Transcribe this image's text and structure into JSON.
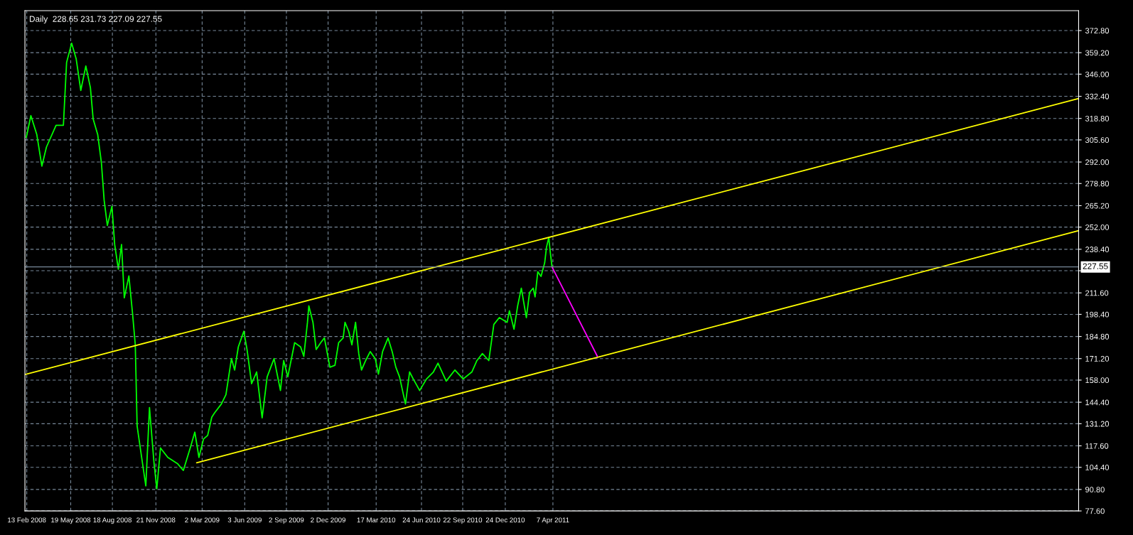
{
  "chart_data": {
    "type": "line",
    "title": "Daily  228.65 231.73 227.09 227.55",
    "xlim": [
      "2008-02-09",
      "2014-05-29"
    ],
    "xticks": [
      {
        "value": "2008-02-13",
        "label": "13 Feb 2008"
      },
      {
        "value": "2008-05-19",
        "label": "19 May 2008"
      },
      {
        "value": "2008-08-18",
        "label": "18 Aug 2008"
      },
      {
        "value": "2008-11-21",
        "label": "21 Nov 2008"
      },
      {
        "value": "2009-03-02",
        "label": "2 Mar 2009"
      },
      {
        "value": "2009-06-03",
        "label": "3 Jun 2009"
      },
      {
        "value": "2009-09-02",
        "label": "2 Sep 2009"
      },
      {
        "value": "2009-12-02",
        "label": "2 Dec 2009"
      },
      {
        "value": "2010-03-17",
        "label": "17 Mar 2010"
      },
      {
        "value": "2010-06-24",
        "label": "24 Jun 2010"
      },
      {
        "value": "2010-09-22",
        "label": "22 Sep 2010"
      },
      {
        "value": "2010-12-24",
        "label": "24 Dec 2010"
      },
      {
        "value": "2011-04-07",
        "label": "7 Apr 2011"
      }
    ],
    "ylim": [
      77.6,
      385
    ],
    "yticks": [
      {
        "value": 77.6,
        "label": "77.60"
      },
      {
        "value": 90.8,
        "label": "90.80"
      },
      {
        "value": 104.4,
        "label": "104.40"
      },
      {
        "value": 117.6,
        "label": "117.60"
      },
      {
        "value": 131.2,
        "label": "131.20"
      },
      {
        "value": 144.4,
        "label": "144.40"
      },
      {
        "value": 158.0,
        "label": "158.00"
      },
      {
        "value": 171.2,
        "label": "171.20"
      },
      {
        "value": 184.8,
        "label": "184.80"
      },
      {
        "value": 198.4,
        "label": "198.40"
      },
      {
        "value": 211.6,
        "label": "211.60"
      },
      {
        "value": 225.2,
        "label": null
      },
      {
        "value": 238.4,
        "label": "238.40"
      },
      {
        "value": 252.0,
        "label": "252.00"
      },
      {
        "value": 265.2,
        "label": "265.20"
      },
      {
        "value": 278.8,
        "label": "278.80"
      },
      {
        "value": 292.0,
        "label": "292.00"
      },
      {
        "value": 305.6,
        "label": "305.60"
      },
      {
        "value": 318.8,
        "label": "318.80"
      },
      {
        "value": 332.4,
        "label": "332.40"
      },
      {
        "value": 346.0,
        "label": "346.00"
      },
      {
        "value": 359.2,
        "label": "359.20"
      },
      {
        "value": 372.8,
        "label": "372.80"
      }
    ],
    "grid": true,
    "line_style": "solid",
    "marker": "none",
    "ref_lines": [
      {
        "axis": "y",
        "value": 227.55,
        "label": "227.55",
        "color": "#778899"
      }
    ],
    "series": [
      {
        "color": "#00ff00",
        "x": [
          "2008-02-12",
          "2008-02-22",
          "2008-03-06",
          "2008-03-17",
          "2008-03-27",
          "2008-04-17",
          "2008-05-03",
          "2008-05-10",
          "2008-05-21",
          "2008-05-31",
          "2008-06-10",
          "2008-06-21",
          "2008-07-01",
          "2008-07-07",
          "2008-07-17",
          "2008-07-25",
          "2008-07-31",
          "2008-08-07",
          "2008-08-17",
          "2008-08-23",
          "2008-08-31",
          "2008-09-07",
          "2008-09-13",
          "2008-09-23",
          "2008-10-01",
          "2008-10-07",
          "2008-10-11",
          "2008-10-20",
          "2008-10-30",
          "2008-11-07",
          "2008-11-17",
          "2008-11-23",
          "2008-12-01",
          "2008-12-17",
          "2009-01-07",
          "2009-01-20",
          "2009-02-04",
          "2009-02-14",
          "2009-02-23",
          "2009-03-05",
          "2009-03-14",
          "2009-03-23",
          "2009-03-29",
          "2009-04-13",
          "2009-04-23",
          "2009-05-05",
          "2009-05-12",
          "2009-05-20",
          "2009-06-01",
          "2009-06-08",
          "2009-06-18",
          "2009-06-29",
          "2009-07-11",
          "2009-07-22",
          "2009-08-06",
          "2009-08-20",
          "2009-08-27",
          "2009-09-05",
          "2009-09-20",
          "2009-10-03",
          "2009-10-10",
          "2009-10-18",
          "2009-10-21",
          "2009-10-30",
          "2009-11-06",
          "2009-11-16",
          "2009-11-24",
          "2009-12-06",
          "2009-12-17",
          "2009-12-25",
          "2010-01-04",
          "2010-01-08",
          "2010-01-16",
          "2010-01-23",
          "2010-01-31",
          "2010-02-07",
          "2010-02-13",
          "2010-02-22",
          "2010-03-04",
          "2010-03-15",
          "2010-03-22",
          "2010-03-31",
          "2010-04-12",
          "2010-04-21",
          "2010-04-29",
          "2010-05-07",
          "2010-05-20",
          "2010-05-29",
          "2010-06-06",
          "2010-06-20",
          "2010-07-05",
          "2010-07-20",
          "2010-07-30",
          "2010-08-17",
          "2010-09-05",
          "2010-09-23",
          "2010-10-12",
          "2010-10-23",
          "2010-11-04",
          "2010-11-18",
          "2010-11-29",
          "2010-12-11",
          "2010-12-28",
          "2011-01-02",
          "2011-01-12",
          "2011-01-20",
          "2011-01-28",
          "2011-02-08",
          "2011-02-15",
          "2011-02-23",
          "2011-02-27",
          "2011-03-05",
          "2011-03-12",
          "2011-03-20",
          "2011-03-24",
          "2011-03-29",
          "2011-04-01",
          "2011-04-05"
        ],
        "values": [
          307.1,
          320.5,
          308.8,
          289.5,
          301.2,
          314.6,
          314.6,
          353.2,
          365.0,
          355.3,
          336.0,
          351.0,
          337.7,
          318.4,
          308.8,
          291.6,
          268.5,
          253.0,
          264.8,
          241.3,
          226.2,
          241.3,
          208.6,
          222.0,
          199.0,
          179.7,
          129.8,
          112.2,
          93.0,
          141.1,
          106.7,
          91.2,
          116.3,
          110.5,
          106.7,
          102.5,
          116.3,
          126.0,
          110.5,
          121.8,
          124.0,
          135.2,
          137.8,
          143.3,
          149.1,
          171.2,
          164.2,
          178.4,
          188.0,
          176.8,
          155.8,
          163.0,
          134.8,
          160.0,
          171.2,
          151.6,
          170.0,
          160.0,
          181.0,
          178.4,
          172.6,
          193.5,
          203.6,
          193.5,
          176.8,
          181.0,
          183.9,
          165.9,
          167.1,
          181.0,
          183.9,
          193.5,
          188.0,
          179.7,
          193.5,
          174.3,
          164.2,
          170.0,
          175.5,
          171.2,
          161.7,
          175.5,
          183.9,
          175.5,
          165.9,
          160.0,
          143.3,
          163.0,
          158.7,
          151.6,
          158.7,
          163.0,
          168.4,
          157.4,
          164.2,
          158.7,
          163.0,
          170.0,
          174.3,
          170.0,
          192.2,
          196.4,
          193.5,
          200.6,
          189.3,
          203.6,
          214.5,
          196.4,
          211.9,
          214.5,
          209.1,
          224.6,
          221.7,
          230.0,
          239.7,
          245.5,
          237.2,
          227.6
        ]
      },
      {
        "color": "#ffff00",
        "x": [
          "2008-02-09",
          "2014-05-29"
        ],
        "values": [
          161.4,
          331.0
        ]
      },
      {
        "color": "#ffff00",
        "x": [
          "2009-02-18",
          "2014-05-29"
        ],
        "values": [
          107.2,
          249.8
        ]
      },
      {
        "color": "#ff00ff",
        "x": [
          "2011-04-05",
          "2011-07-13"
        ],
        "values": [
          227.6,
          172.6
        ]
      }
    ]
  }
}
